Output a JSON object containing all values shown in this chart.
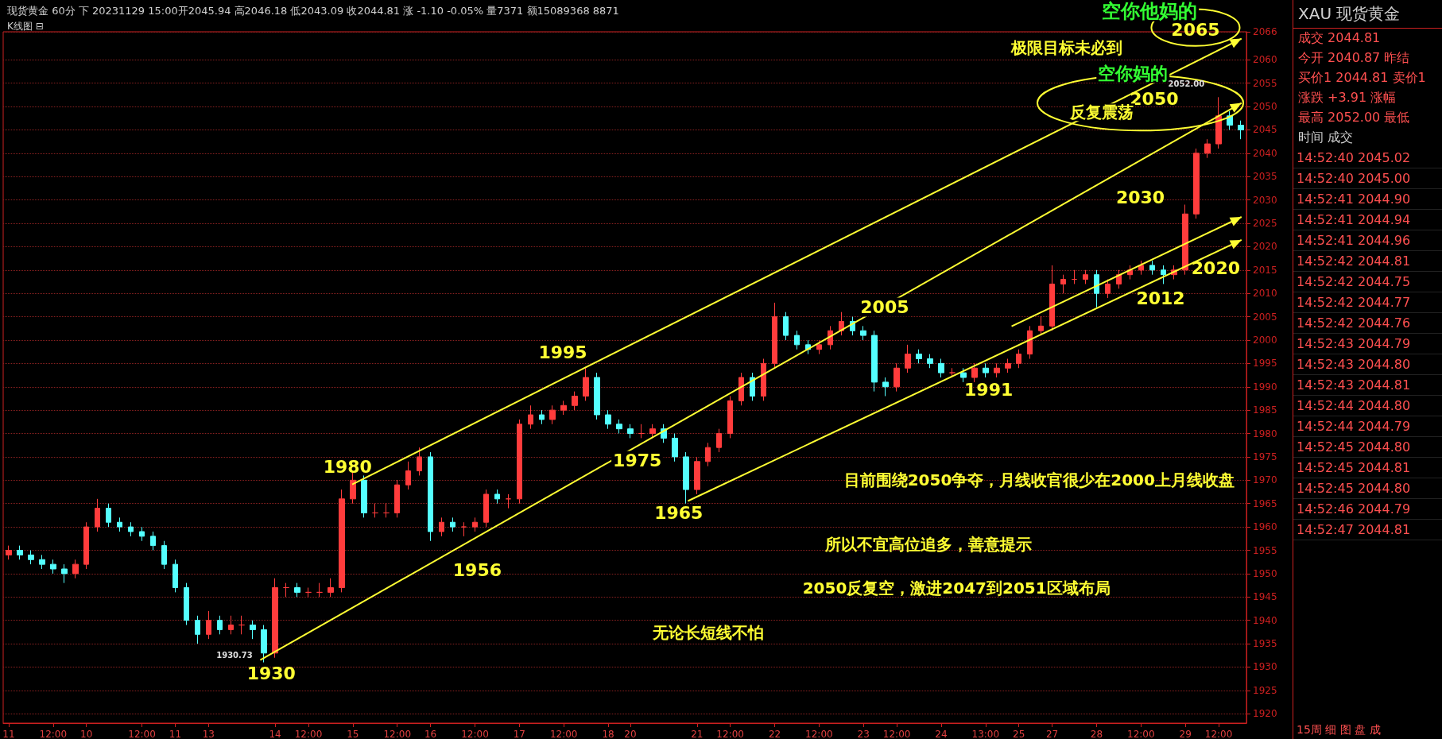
{
  "chart_data": [
    {
      "type": "candlestick",
      "title": "现货黄金 60分 下 20231129 15:00开2045.94 高2046.18 低2043.09 收2044.81 涨 -1.10 -0.05% 量7371 额15089368 8871",
      "subtitle": "K线图 ⊟",
      "categories": [
        "11",
        null,
        null,
        null,
        "12:00",
        null,
        null,
        "10",
        null,
        null,
        null,
        null,
        "12:00",
        null,
        null,
        "11",
        null,
        null,
        "13",
        null,
        null,
        null,
        null,
        null,
        "14",
        null,
        null,
        "12:00",
        null,
        null,
        null,
        "15",
        null,
        null,
        null,
        "12:00",
        null,
        null,
        "16",
        null,
        null,
        null,
        "12:00",
        null,
        null,
        null,
        "17",
        null,
        null,
        null,
        "12:00",
        null,
        null,
        null,
        "18",
        null,
        "20",
        null,
        null,
        null,
        null,
        null,
        "21",
        null,
        null,
        "12:00",
        null,
        null,
        null,
        "22",
        null,
        null,
        null,
        "12:00",
        null,
        null,
        null,
        "23",
        null,
        null,
        "12:00",
        null,
        null,
        null,
        "24",
        null,
        null,
        null,
        "13:00",
        null,
        null,
        "25",
        null,
        null,
        "27",
        null,
        null,
        null,
        "28",
        null,
        null,
        null,
        "12:00",
        null,
        null,
        null,
        "29",
        null,
        null,
        "12:00",
        null,
        null
      ],
      "ohlc": [
        [
          1954,
          1956,
          1953,
          1955
        ],
        [
          1955,
          1956,
          1953,
          1954
        ],
        [
          1954,
          1955,
          1952,
          1953
        ],
        [
          1953,
          1954,
          1951,
          1952
        ],
        [
          1952,
          1953,
          1950,
          1951
        ],
        [
          1951,
          1952,
          1948,
          1950
        ],
        [
          1950,
          1953,
          1949,
          1952
        ],
        [
          1952,
          1961,
          1951,
          1960
        ],
        [
          1960,
          1966,
          1959,
          1964
        ],
        [
          1964,
          1965,
          1960,
          1961
        ],
        [
          1961,
          1962,
          1959,
          1960
        ],
        [
          1960,
          1961,
          1958,
          1959
        ],
        [
          1959,
          1960,
          1957,
          1958
        ],
        [
          1958,
          1959,
          1955,
          1956
        ],
        [
          1956,
          1957,
          1951,
          1952
        ],
        [
          1952,
          1953,
          1946,
          1947
        ],
        [
          1947,
          1948,
          1939,
          1940
        ],
        [
          1940,
          1941,
          1935,
          1937
        ],
        [
          1937,
          1942,
          1936,
          1940
        ],
        [
          1940,
          1941,
          1937,
          1938
        ],
        [
          1938,
          1941,
          1937,
          1939
        ],
        [
          1939,
          1941,
          1937,
          1939
        ],
        [
          1939,
          1940,
          1936,
          1938
        ],
        [
          1938,
          1939,
          1931,
          1933
        ],
        [
          1933,
          1949,
          1932,
          1947
        ],
        [
          1947,
          1948,
          1945,
          1947
        ],
        [
          1947,
          1948,
          1945,
          1946
        ],
        [
          1946,
          1947,
          1945,
          1946
        ],
        [
          1946,
          1948,
          1945,
          1946
        ],
        [
          1946,
          1949,
          1945,
          1947
        ],
        [
          1947,
          1968,
          1946,
          1966
        ],
        [
          1966,
          1972,
          1965,
          1970
        ],
        [
          1970,
          1971,
          1962,
          1963
        ],
        [
          1963,
          1965,
          1962,
          1963
        ],
        [
          1963,
          1965,
          1962,
          1963
        ],
        [
          1963,
          1970,
          1962,
          1969
        ],
        [
          1969,
          1974,
          1968,
          1972
        ],
        [
          1972,
          1977,
          1971,
          1975
        ],
        [
          1975,
          1976,
          1957,
          1959
        ],
        [
          1959,
          1962,
          1958,
          1961
        ],
        [
          1961,
          1962,
          1959,
          1960
        ],
        [
          1960,
          1961,
          1958,
          1960
        ],
        [
          1960,
          1962,
          1959,
          1961
        ],
        [
          1961,
          1968,
          1960,
          1967
        ],
        [
          1967,
          1968,
          1965,
          1966
        ],
        [
          1966,
          1967,
          1964,
          1966
        ],
        [
          1966,
          1983,
          1965,
          1982
        ],
        [
          1982,
          1986,
          1981,
          1984
        ],
        [
          1984,
          1985,
          1982,
          1983
        ],
        [
          1983,
          1986,
          1982,
          1985
        ],
        [
          1985,
          1987,
          1984,
          1986
        ],
        [
          1986,
          1989,
          1985,
          1988
        ],
        [
          1988,
          1994,
          1987,
          1992
        ],
        [
          1992,
          1993,
          1983,
          1984
        ],
        [
          1984,
          1985,
          1981,
          1982
        ],
        [
          1982,
          1983,
          1980,
          1981
        ],
        [
          1981,
          1982,
          1979,
          1980
        ],
        [
          1980,
          1982,
          1979,
          1980
        ],
        [
          1980,
          1982,
          1979,
          1981
        ],
        [
          1981,
          1982,
          1978,
          1979
        ],
        [
          1979,
          1980,
          1974,
          1975
        ],
        [
          1975,
          1976,
          1965,
          1968
        ],
        [
          1968,
          1975,
          1967,
          1974
        ],
        [
          1974,
          1978,
          1973,
          1977
        ],
        [
          1977,
          1981,
          1976,
          1980
        ],
        [
          1980,
          1988,
          1979,
          1987
        ],
        [
          1987,
          1993,
          1986,
          1992
        ],
        [
          1992,
          1993,
          1987,
          1988
        ],
        [
          1988,
          1996,
          1987,
          1995
        ],
        [
          1995,
          2008,
          1994,
          2005
        ],
        [
          2005,
          2006,
          2000,
          2001
        ],
        [
          2001,
          2002,
          1998,
          1999
        ],
        [
          1999,
          2000,
          1997,
          1998
        ],
        [
          1998,
          2000,
          1997,
          1999
        ],
        [
          1999,
          2003,
          1998,
          2002
        ],
        [
          2002,
          2006,
          2001,
          2004
        ],
        [
          2004,
          2005,
          2001,
          2002
        ],
        [
          2002,
          2003,
          2000,
          2001
        ],
        [
          2001,
          2002,
          1989,
          1991
        ],
        [
          1991,
          1992,
          1988,
          1990
        ],
        [
          1990,
          1995,
          1989,
          1994
        ],
        [
          1994,
          1999,
          1993,
          1997
        ],
        [
          1997,
          1998,
          1995,
          1996
        ],
        [
          1996,
          1997,
          1994,
          1995
        ],
        [
          1995,
          1996,
          1992,
          1993
        ],
        [
          1993,
          1994,
          1992,
          1993
        ],
        [
          1993,
          1994,
          1991,
          1992
        ],
        [
          1992,
          1995,
          1991,
          1994
        ],
        [
          1994,
          1995,
          1992,
          1993
        ],
        [
          1993,
          1995,
          1992,
          1994
        ],
        [
          1994,
          1996,
          1993,
          1995
        ],
        [
          1995,
          1998,
          1994,
          1997
        ],
        [
          1997,
          2003,
          1996,
          2002
        ],
        [
          2002,
          2005,
          2001,
          2003
        ],
        [
          2003,
          2016,
          2002,
          2012
        ],
        [
          2012,
          2014,
          2010,
          2013
        ],
        [
          2013,
          2015,
          2012,
          2013
        ],
        [
          2013,
          2015,
          2012,
          2014
        ],
        [
          2014,
          2015,
          2007,
          2010
        ],
        [
          2010,
          2013,
          2009,
          2012
        ],
        [
          2012,
          2015,
          2011,
          2014
        ],
        [
          2014,
          2016,
          2013,
          2015
        ],
        [
          2015,
          2017,
          2014,
          2016
        ],
        [
          2016,
          2017,
          2014,
          2015
        ],
        [
          2015,
          2016,
          2012,
          2014
        ],
        [
          2014,
          2016,
          2013,
          2015
        ],
        [
          2015,
          2029,
          2014,
          2027
        ],
        [
          2027,
          2041,
          2026,
          2040
        ],
        [
          2040,
          2043,
          2039,
          2042
        ],
        [
          2042,
          2052,
          2041,
          2048
        ],
        [
          2048,
          2049,
          2045,
          2046
        ],
        [
          2046,
          2047,
          2043,
          2045
        ]
      ],
      "colors": [
        "#ff3c3c",
        "#54ffff",
        "#54ffff",
        "#54ffff",
        "#54ffff",
        "#54ffff",
        "#ff3c3c",
        "#ff3c3c",
        "#ff3c3c",
        "#54ffff",
        "#54ffff",
        "#54ffff",
        "#54ffff",
        "#54ffff",
        "#54ffff",
        "#54ffff",
        "#54ffff",
        "#54ffff",
        "#ff3c3c",
        "#54ffff",
        "#ff3c3c",
        "#ff3c3c",
        "#54ffff",
        "#54ffff",
        "#ff3c3c",
        "#ff3c3c",
        "#54ffff",
        "#ff3c3c",
        "#ff3c3c",
        "#ff3c3c",
        "#ff3c3c",
        "#ff3c3c",
        "#54ffff",
        "#ff3c3c",
        "#ff3c3c",
        "#ff3c3c",
        "#ff3c3c",
        "#ff3c3c",
        "#54ffff",
        "#ff3c3c",
        "#54ffff",
        "#ff3c3c",
        "#ff3c3c",
        "#ff3c3c",
        "#54ffff",
        "#ff3c3c",
        "#ff3c3c",
        "#ff3c3c",
        "#54ffff",
        "#ff3c3c",
        "#ff3c3c",
        "#ff3c3c",
        "#ff3c3c",
        "#54ffff",
        "#54ffff",
        "#54ffff",
        "#54ffff",
        "#ff3c3c",
        "#ff3c3c",
        "#54ffff",
        "#54ffff",
        "#54ffff",
        "#ff3c3c",
        "#ff3c3c",
        "#ff3c3c",
        "#ff3c3c",
        "#ff3c3c",
        "#54ffff",
        "#ff3c3c",
        "#ff3c3c",
        "#54ffff",
        "#54ffff",
        "#54ffff",
        "#ff3c3c",
        "#ff3c3c",
        "#ff3c3c",
        "#54ffff",
        "#54ffff",
        "#54ffff",
        "#54ffff",
        "#ff3c3c",
        "#ff3c3c",
        "#54ffff",
        "#54ffff",
        "#54ffff",
        "#ff3c3c",
        "#54ffff",
        "#ff3c3c",
        "#54ffff",
        "#ff3c3c",
        "#ff3c3c",
        "#ff3c3c",
        "#ff3c3c",
        "#ff3c3c",
        "#ff3c3c",
        "#ff3c3c",
        "#ff3c3c",
        "#ff3c3c",
        "#54ffff",
        "#ff3c3c",
        "#ff3c3c",
        "#ff3c3c",
        "#ff3c3c",
        "#54ffff",
        "#54ffff",
        "#ff3c3c",
        "#ff3c3c",
        "#ff3c3c",
        "#ff3c3c",
        "#ff3c3c",
        "#54ffff",
        "#54ffff"
      ],
      "ylim": [
        1918,
        2066
      ],
      "yticks": [
        1920,
        1925,
        1930,
        1935,
        1940,
        1945,
        1950,
        1955,
        1960,
        1965,
        1970,
        1975,
        1980,
        1985,
        1990,
        1995,
        2000,
        2005,
        2010,
        2015,
        2020,
        2025,
        2030,
        2035,
        2040,
        2045,
        2050,
        2055,
        2060,
        2066
      ],
      "grid": "y",
      "annotations": [
        "空你他妈的",
        "2065",
        "极限目标未必到",
        "空你妈的",
        "2050",
        "反复震荡",
        "2052.00",
        "2030",
        "2020",
        "2012",
        "1991",
        "2005",
        "1995",
        "1980",
        "1975",
        "1965",
        "1956",
        "1930",
        "1930.73",
        "目前围绕2050争夺，月线收官很少在2000上月线收盘",
        "所以不宜高位追多，善意提示",
        "2050反复空，激进2047到2051区域布局",
        "无论长短线不怕"
      ]
    },
    {
      "type": "other",
      "title": "XAU 现货黄金",
      "annotations": [
        "成交 2044.81",
        "今开 2040.87 昨结",
        "买价1 2044.81 卖价1",
        "涨跌 +3.91 涨幅",
        "最高 2052.00 最低",
        "时间 成交",
        "14:52:40 2045.02",
        "14:52:40 2045.00",
        "14:52:41 2044.90",
        "14:52:41 2044.94",
        "14:52:41 2044.96",
        "14:52:42 2044.81",
        "14:52:42 2044.75",
        "14:52:42 2044.77",
        "14:52:42 2044.76",
        "14:52:43 2044.79",
        "14:52:43 2044.80",
        "14:52:43 2044.81",
        "14:52:44 2044.80",
        "14:52:44 2044.79",
        "14:52:45 2044.80",
        "14:52:45 2044.81",
        "14:52:45 2044.80",
        "14:52:46 2044.79",
        "14:52:47 2044.81",
        "15周 细 图 盘 成"
      ]
    }
  ]
}
